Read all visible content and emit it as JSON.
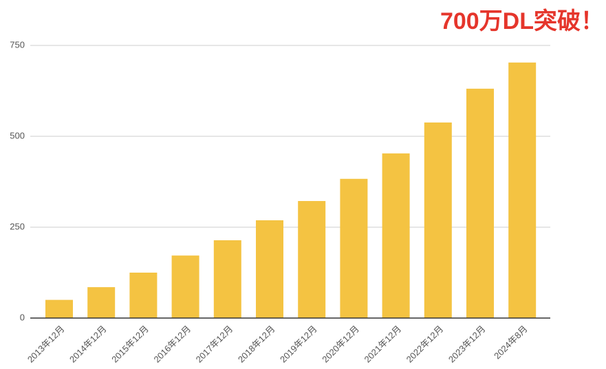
{
  "chart_data": {
    "type": "bar",
    "title": "700万DL突破！",
    "categories": [
      "2013年12月",
      "2014年12月",
      "2015年12月",
      "2016年12月",
      "2017年12月",
      "2018年12月",
      "2019年12月",
      "2020年12月",
      "2021年12月",
      "2022年12月",
      "2023年12月",
      "2024年8月"
    ],
    "values": [
      50,
      85,
      125,
      172,
      214,
      269,
      322,
      383,
      453,
      538,
      631,
      703
    ],
    "color": "#f4c342",
    "ylim": [
      0,
      750
    ],
    "yticks": [
      0,
      250,
      500,
      750
    ],
    "grid": true
  }
}
